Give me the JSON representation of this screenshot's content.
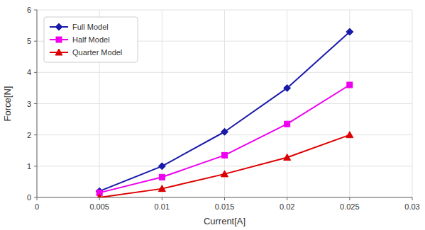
{
  "chart_data": {
    "type": "line",
    "x": [
      0.005,
      0.01,
      0.015,
      0.02,
      0.025
    ],
    "series": [
      {
        "name": "Full Model",
        "color": "#1a1aaa",
        "marker": "diamond",
        "values": [
          0.2,
          1.0,
          2.1,
          3.5,
          5.3
        ]
      },
      {
        "name": "Half Model",
        "color": "#ee00ee",
        "marker": "square",
        "values": [
          0.15,
          0.65,
          1.35,
          2.35,
          3.6
        ]
      },
      {
        "name": "Quarter Model",
        "color": "#dd0000",
        "marker": "triangle",
        "values": [
          0.0,
          0.28,
          0.75,
          1.28,
          2.0
        ]
      }
    ],
    "xlabel": "Current[A]",
    "ylabel": "Force[N]",
    "xlim": [
      0,
      0.03
    ],
    "ylim": [
      0,
      6
    ],
    "xticks": [
      0,
      0.005,
      0.01,
      0.015,
      0.02,
      0.025,
      0.03
    ],
    "yticks": [
      0,
      1,
      2,
      3,
      4,
      5,
      6
    ],
    "grid": true,
    "legend": "upper-left"
  }
}
